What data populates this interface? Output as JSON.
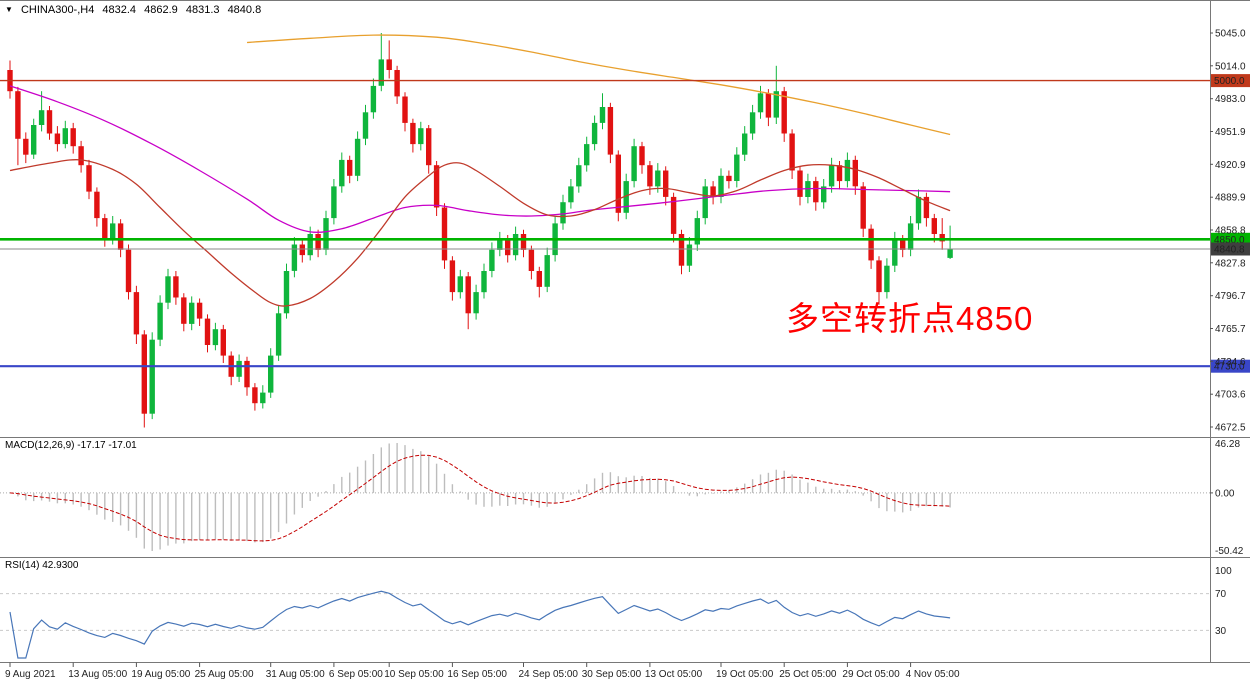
{
  "title_bar": {
    "marker": "▼",
    "symbol_period": "CHINA300-,H4",
    "open": "4832.4",
    "high": "4862.9",
    "low": "4831.3",
    "close": "4840.8"
  },
  "annotation": {
    "text": "多空转折点4850",
    "color": "#FF0000"
  },
  "colors": {
    "background": "#FFFFFF",
    "bull": "#0FB53C",
    "bear": "#E11212",
    "panel_border": "#787878",
    "axis_text": "#222222"
  },
  "chart_data": {
    "type": "candlestick+indicators",
    "symbol": "CHINA300-",
    "timeframe": "H4",
    "y_range": [
      4672.5,
      5045.0
    ],
    "y_axis_labels": [
      "5045.0",
      "5014.0",
      "4983.0",
      "4951.9",
      "4920.9",
      "4889.9",
      "4858.8",
      "4827.8",
      "4796.7",
      "4765.7",
      "4734.6",
      "4703.6",
      "4672.5"
    ],
    "x_labels": [
      {
        "label": "9 Aug 2021",
        "bar": 0
      },
      {
        "label": "13 Aug 05:00",
        "bar": 8
      },
      {
        "label": "19 Aug 05:00",
        "bar": 16
      },
      {
        "label": "25 Aug 05:00",
        "bar": 24
      },
      {
        "label": "31 Aug 05:00",
        "bar": 33
      },
      {
        "label": "6 Sep 05:00",
        "bar": 41
      },
      {
        "label": "10 Sep 05:00",
        "bar": 48
      },
      {
        "label": "16 Sep 05:00",
        "bar": 56
      },
      {
        "label": "24 Sep 05:00",
        "bar": 65
      },
      {
        "label": "30 Sep 05:00",
        "bar": 73
      },
      {
        "label": "13 Oct 05:00",
        "bar": 81
      },
      {
        "label": "19 Oct 05:00",
        "bar": 90
      },
      {
        "label": "25 Oct 05:00",
        "bar": 98
      },
      {
        "label": "29 Oct 05:00",
        "bar": 106
      },
      {
        "label": "4 Nov 05:00",
        "bar": 114
      }
    ],
    "candles": [
      [
        5010,
        5019,
        4983,
        4990
      ],
      [
        4990,
        4994,
        4920,
        4945
      ],
      [
        4945,
        4951,
        4922,
        4930
      ],
      [
        4930,
        4964,
        4926,
        4958
      ],
      [
        4958,
        4990,
        4952,
        4972
      ],
      [
        4972,
        4976,
        4944,
        4950
      ],
      [
        4950,
        4957,
        4933,
        4940
      ],
      [
        4940,
        4962,
        4936,
        4955
      ],
      [
        4955,
        4960,
        4931,
        4938
      ],
      [
        4938,
        4943,
        4913,
        4920
      ],
      [
        4920,
        4925,
        4888,
        4895
      ],
      [
        4895,
        4899,
        4862,
        4870
      ],
      [
        4870,
        4874,
        4843,
        4850
      ],
      [
        4850,
        4872,
        4845,
        4865
      ],
      [
        4865,
        4869,
        4833,
        4840
      ],
      [
        4840,
        4845,
        4793,
        4800
      ],
      [
        4800,
        4806,
        4751,
        4760
      ],
      [
        4760,
        4764,
        4672,
        4685
      ],
      [
        4685,
        4762,
        4680,
        4755
      ],
      [
        4755,
        4797,
        4749,
        4790
      ],
      [
        4790,
        4822,
        4784,
        4815
      ],
      [
        4815,
        4820,
        4788,
        4795
      ],
      [
        4795,
        4799,
        4763,
        4770
      ],
      [
        4770,
        4796,
        4764,
        4790
      ],
      [
        4790,
        4794,
        4768,
        4775
      ],
      [
        4775,
        4779,
        4743,
        4750
      ],
      [
        4750,
        4771,
        4745,
        4765
      ],
      [
        4765,
        4769,
        4733,
        4740
      ],
      [
        4740,
        4744,
        4712,
        4720
      ],
      [
        4720,
        4741,
        4715,
        4735
      ],
      [
        4735,
        4739,
        4702,
        4710
      ],
      [
        4710,
        4714,
        4688,
        4695
      ],
      [
        4695,
        4712,
        4690,
        4705
      ],
      [
        4705,
        4747,
        4700,
        4740
      ],
      [
        4740,
        4787,
        4735,
        4780
      ],
      [
        4780,
        4827,
        4775,
        4820
      ],
      [
        4820,
        4852,
        4814,
        4845
      ],
      [
        4845,
        4850,
        4828,
        4835
      ],
      [
        4835,
        4862,
        4830,
        4855
      ],
      [
        4855,
        4859,
        4833,
        4840
      ],
      [
        4840,
        4877,
        4835,
        4870
      ],
      [
        4870,
        4907,
        4864,
        4900
      ],
      [
        4900,
        4932,
        4894,
        4925
      ],
      [
        4925,
        4929,
        4903,
        4910
      ],
      [
        4910,
        4952,
        4905,
        4945
      ],
      [
        4945,
        4977,
        4939,
        4970
      ],
      [
        4970,
        5002,
        4964,
        4995
      ],
      [
        4995,
        5045,
        4990,
        5020
      ],
      [
        5020,
        5038,
        5002,
        5010
      ],
      [
        5010,
        5014,
        4978,
        4985
      ],
      [
        4985,
        4989,
        4952,
        4960
      ],
      [
        4960,
        4964,
        4932,
        4940
      ],
      [
        4940,
        4961,
        4934,
        4955
      ],
      [
        4955,
        4958,
        4912,
        4920
      ],
      [
        4920,
        4924,
        4872,
        4880
      ],
      [
        4880,
        4884,
        4822,
        4830
      ],
      [
        4830,
        4834,
        4792,
        4800
      ],
      [
        4800,
        4821,
        4794,
        4815
      ],
      [
        4815,
        4819,
        4765,
        4780
      ],
      [
        4780,
        4807,
        4774,
        4800
      ],
      [
        4800,
        4827,
        4794,
        4820
      ],
      [
        4820,
        4847,
        4814,
        4840
      ],
      [
        4840,
        4857,
        4834,
        4850
      ],
      [
        4850,
        4854,
        4828,
        4835
      ],
      [
        4835,
        4862,
        4830,
        4855
      ],
      [
        4855,
        4859,
        4833,
        4840
      ],
      [
        4840,
        4844,
        4812,
        4820
      ],
      [
        4820,
        4824,
        4795,
        4805
      ],
      [
        4805,
        4842,
        4800,
        4835
      ],
      [
        4835,
        4872,
        4829,
        4865
      ],
      [
        4865,
        4892,
        4859,
        4885
      ],
      [
        4885,
        4907,
        4879,
        4900
      ],
      [
        4900,
        4927,
        4894,
        4920
      ],
      [
        4920,
        4947,
        4914,
        4940
      ],
      [
        4940,
        4967,
        4934,
        4960
      ],
      [
        4960,
        4988,
        4954,
        4975
      ],
      [
        4975,
        4979,
        4922,
        4930
      ],
      [
        4930,
        4934,
        4867,
        4875
      ],
      [
        4875,
        4912,
        4869,
        4905
      ],
      [
        4905,
        4945,
        4899,
        4938
      ],
      [
        4938,
        4942,
        4912,
        4920
      ],
      [
        4920,
        4924,
        4892,
        4900
      ],
      [
        4900,
        4922,
        4894,
        4915
      ],
      [
        4915,
        4919,
        4882,
        4890
      ],
      [
        4890,
        4894,
        4847,
        4855
      ],
      [
        4855,
        4859,
        4817,
        4825
      ],
      [
        4825,
        4852,
        4819,
        4845
      ],
      [
        4845,
        4877,
        4839,
        4870
      ],
      [
        4870,
        4907,
        4864,
        4900
      ],
      [
        4900,
        4905,
        4883,
        4890
      ],
      [
        4890,
        4917,
        4884,
        4910
      ],
      [
        4910,
        4915,
        4898,
        4905
      ],
      [
        4905,
        4937,
        4899,
        4930
      ],
      [
        4930,
        4957,
        4924,
        4950
      ],
      [
        4950,
        4977,
        4944,
        4970
      ],
      [
        4970,
        4995,
        4964,
        4988
      ],
      [
        4988,
        4992,
        4957,
        4965
      ],
      [
        4965,
        5014,
        4959,
        4990
      ],
      [
        4990,
        4994,
        4942,
        4950
      ],
      [
        4950,
        4954,
        4907,
        4915
      ],
      [
        4915,
        4919,
        4882,
        4890
      ],
      [
        4890,
        4912,
        4884,
        4905
      ],
      [
        4905,
        4909,
        4877,
        4885
      ],
      [
        4885,
        4907,
        4879,
        4900
      ],
      [
        4900,
        4927,
        4894,
        4920
      ],
      [
        4920,
        4924,
        4897,
        4905
      ],
      [
        4905,
        4932,
        4899,
        4925
      ],
      [
        4925,
        4929,
        4892,
        4900
      ],
      [
        4900,
        4904,
        4852,
        4860
      ],
      [
        4860,
        4864,
        4822,
        4830
      ],
      [
        4830,
        4834,
        4788,
        4800
      ],
      [
        4800,
        4832,
        4794,
        4825
      ],
      [
        4825,
        4857,
        4819,
        4850
      ],
      [
        4850,
        4854,
        4833,
        4840
      ],
      [
        4840,
        4872,
        4834,
        4865
      ],
      [
        4865,
        4897,
        4859,
        4890
      ],
      [
        4890,
        4894,
        4862,
        4870
      ],
      [
        4870,
        4874,
        4847,
        4855
      ],
      [
        4855,
        4870,
        4840,
        4848
      ],
      [
        4832.4,
        4862.9,
        4831.3,
        4840.8
      ]
    ],
    "moving_averages": [
      {
        "name": "ma-slow-orange",
        "color": "#E8A02E",
        "points": [
          [
            30,
            5036
          ],
          [
            38,
            5040
          ],
          [
            46,
            5043
          ],
          [
            54,
            5041
          ],
          [
            60,
            5035
          ],
          [
            66,
            5027
          ],
          [
            72,
            5018
          ],
          [
            78,
            5010
          ],
          [
            84,
            5003
          ],
          [
            90,
            4996
          ],
          [
            96,
            4988
          ],
          [
            102,
            4979
          ],
          [
            108,
            4969
          ],
          [
            114,
            4958
          ],
          [
            119,
            4949
          ]
        ]
      },
      {
        "name": "ma-medium-magenta",
        "color": "#C800C8",
        "points": [
          [
            0,
            4995
          ],
          [
            6,
            4980
          ],
          [
            12,
            4962
          ],
          [
            18,
            4940
          ],
          [
            24,
            4915
          ],
          [
            30,
            4888
          ],
          [
            34,
            4868
          ],
          [
            38,
            4857
          ],
          [
            42,
            4860
          ],
          [
            46,
            4870
          ],
          [
            50,
            4880
          ],
          [
            54,
            4882
          ],
          [
            58,
            4877
          ],
          [
            62,
            4873
          ],
          [
            66,
            4872
          ],
          [
            70,
            4874
          ],
          [
            74,
            4878
          ],
          [
            82,
            4884
          ],
          [
            90,
            4891
          ],
          [
            96,
            4896
          ],
          [
            102,
            4898
          ],
          [
            108,
            4897
          ],
          [
            114,
            4896
          ],
          [
            119,
            4895
          ]
        ]
      },
      {
        "name": "ma-fast-red",
        "color": "#C03A2B",
        "points": [
          [
            0,
            4915
          ],
          [
            5,
            4922
          ],
          [
            9,
            4925
          ],
          [
            13,
            4916
          ],
          [
            16,
            4902
          ],
          [
            19,
            4880
          ],
          [
            22,
            4858
          ],
          [
            25,
            4838
          ],
          [
            28,
            4818
          ],
          [
            31,
            4800
          ],
          [
            33,
            4790
          ],
          [
            35,
            4787
          ],
          [
            38,
            4794
          ],
          [
            41,
            4810
          ],
          [
            44,
            4832
          ],
          [
            47,
            4860
          ],
          [
            50,
            4890
          ],
          [
            53,
            4910
          ],
          [
            55,
            4920
          ],
          [
            57,
            4922
          ],
          [
            59,
            4915
          ],
          [
            62,
            4900
          ],
          [
            65,
            4884
          ],
          [
            68,
            4873
          ],
          [
            71,
            4872
          ],
          [
            74,
            4878
          ],
          [
            77,
            4888
          ],
          [
            80,
            4896
          ],
          [
            83,
            4898
          ],
          [
            86,
            4894
          ],
          [
            89,
            4891
          ],
          [
            92,
            4896
          ],
          [
            95,
            4906
          ],
          [
            98,
            4915
          ],
          [
            101,
            4920
          ],
          [
            104,
            4920
          ],
          [
            107,
            4916
          ],
          [
            110,
            4908
          ],
          [
            113,
            4897
          ],
          [
            116,
            4886
          ],
          [
            119,
            4877
          ]
        ]
      }
    ],
    "horizontal_lines": [
      {
        "price": 5000.0,
        "label": "5000.0",
        "color": "#C0391B",
        "width": 1.4
      },
      {
        "price": 4850.0,
        "label": "4850.0",
        "color": "#00B400",
        "width": 2.6
      },
      {
        "price": 4840.8,
        "label": "4840.8",
        "color": "#8A8A8A",
        "width": 1,
        "tag_color": "#3F3F3F"
      },
      {
        "price": 4730.0,
        "label": "4730.0",
        "color": "#3946C8",
        "width": 2.2
      }
    ],
    "macd": {
      "label": "MACD(12,26,9) -17.17 -17.01",
      "fast": 12,
      "slow": 26,
      "signal": 9,
      "scale_labels": [
        "46.28",
        "0.00",
        "-50.42"
      ],
      "histogram_color": "#BDBDBD",
      "signal_color": "#C40000",
      "derived_from": "candles"
    },
    "rsi": {
      "label": "RSI(14) 42.9300",
      "period": 14,
      "scale_labels": [
        "100",
        "70",
        "30"
      ],
      "levels": [
        70,
        30
      ],
      "line_color": "#4876B8",
      "derived_from": "candles"
    }
  }
}
